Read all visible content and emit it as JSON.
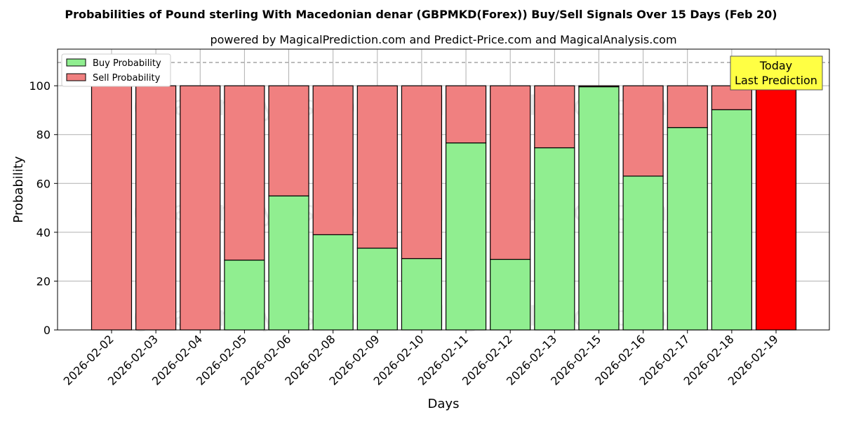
{
  "chart_data": {
    "type": "bar",
    "stacked": true,
    "title": "Probabilities of Pound sterling With Macedonian denar (GBPMKD(Forex)) Buy/Sell Signals Over 15 Days (Feb 20)",
    "subtitle": "powered by MagicalPrediction.com and Predict-Price.com and MagicalAnalysis.com",
    "xlabel": "Days",
    "ylabel": "Probability",
    "ylim": [
      0,
      115
    ],
    "yticks": [
      0,
      20,
      40,
      60,
      80,
      100
    ],
    "grid": true,
    "legend_position": "top-left",
    "reference_line": 110,
    "categories": [
      "2026-02-02",
      "2026-02-03",
      "2026-02-04",
      "2026-02-05",
      "2026-02-06",
      "2026-02-08",
      "2026-02-09",
      "2026-02-10",
      "2026-02-11",
      "2026-02-12",
      "2026-02-13",
      "2026-02-15",
      "2026-02-16",
      "2026-02-17",
      "2026-02-18",
      "2026-02-19"
    ],
    "series": [
      {
        "name": "Buy Probability",
        "color": "#90ee90",
        "values": [
          0,
          0,
          0,
          28.6,
          54.9,
          39.0,
          33.5,
          29.2,
          76.6,
          28.9,
          74.6,
          99.6,
          63.0,
          82.9,
          90.2,
          0
        ]
      },
      {
        "name": "Sell Probability",
        "color": "#f08080",
        "values": [
          100,
          100,
          100,
          71.4,
          45.1,
          61.0,
          66.5,
          70.8,
          23.4,
          71.1,
          25.4,
          0.4,
          37.0,
          17.1,
          9.8,
          100
        ]
      }
    ],
    "highlight": {
      "index": 15,
      "color": "#ff0000"
    },
    "annotation": {
      "line1": "Today",
      "line2": "Last Prediction"
    },
    "watermarks": [
      "MagicalAnalysis.com",
      "MagicalPrediction.com"
    ]
  }
}
